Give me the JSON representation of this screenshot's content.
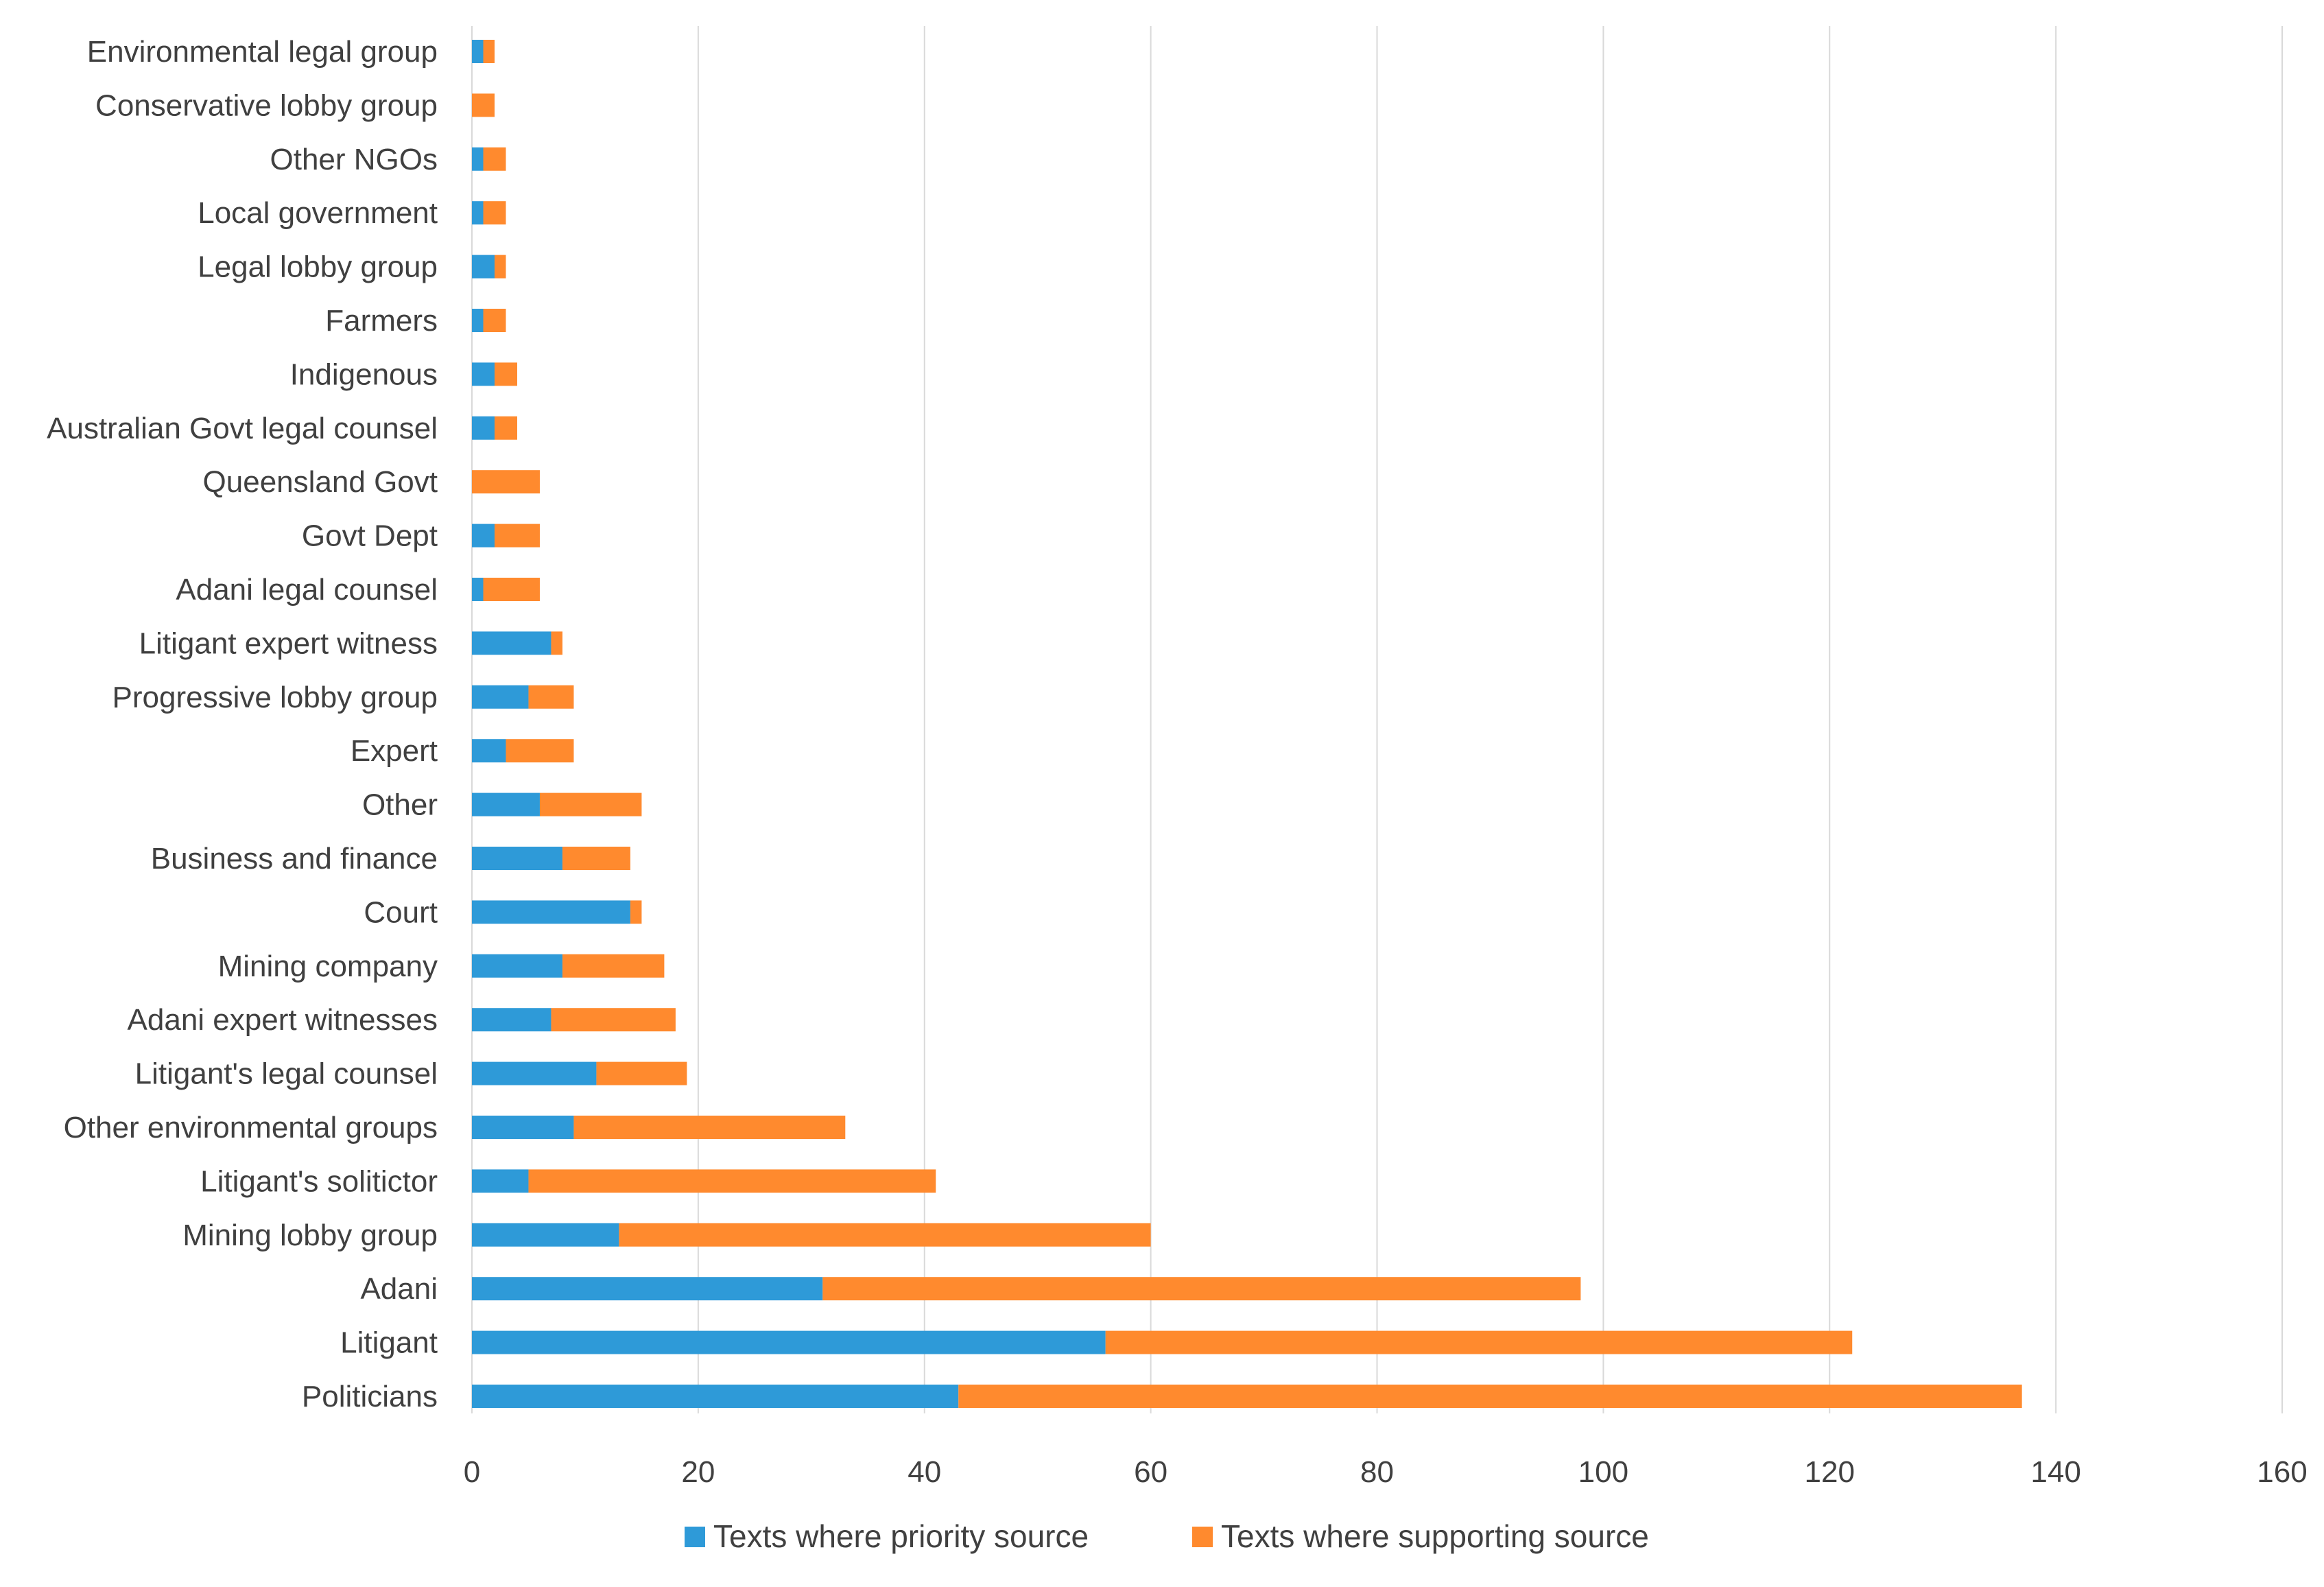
{
  "chart_data": {
    "type": "bar",
    "orientation": "horizontal",
    "stacked": true,
    "title": "",
    "xlabel": "",
    "ylabel": "",
    "xlim": [
      0,
      160
    ],
    "x_ticks": [
      0,
      20,
      40,
      60,
      80,
      100,
      120,
      140,
      160
    ],
    "grid": "vertical",
    "legend_position": "bottom",
    "categories": [
      "Environmental legal group",
      "Conservative lobby group",
      "Other NGOs",
      "Local government",
      "Legal lobby group",
      "Farmers",
      "Indigenous",
      "Australian Govt legal counsel",
      "Queensland Govt",
      "Govt Dept",
      "Adani legal counsel",
      "Litigant expert witness",
      "Progressive lobby group",
      "Expert",
      "Other",
      "Business and finance",
      "Court",
      "Mining company",
      "Adani expert witnesses",
      "Litigant's legal counsel",
      "Other environmental groups",
      "Litigant's solitictor",
      "Mining lobby group",
      "Adani",
      "Litigant",
      "Politicians"
    ],
    "series": [
      {
        "name": "Texts where priority source",
        "color": "#2E9AD8",
        "values": [
          1,
          0,
          1,
          1,
          2,
          1,
          2,
          2,
          0,
          2,
          1,
          7,
          5,
          3,
          6,
          8,
          14,
          8,
          7,
          11,
          9,
          5,
          13,
          31,
          56,
          43
        ]
      },
      {
        "name": "Texts where supporting source",
        "color": "#FF8A2E",
        "values": [
          1,
          2,
          2,
          2,
          1,
          2,
          2,
          2,
          6,
          4,
          5,
          1,
          4,
          6,
          9,
          6,
          1,
          9,
          11,
          8,
          24,
          36,
          47,
          67,
          66,
          94
        ]
      }
    ]
  }
}
